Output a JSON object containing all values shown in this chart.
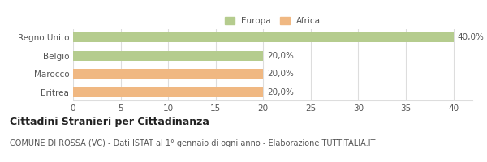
{
  "categories": [
    "Eritrea",
    "Marocco",
    "Belgio",
    "Regno Unito"
  ],
  "values": [
    20.0,
    20.0,
    20.0,
    40.0
  ],
  "colors": [
    "#f0b882",
    "#f0b882",
    "#b5cc8e",
    "#b5cc8e"
  ],
  "bar_labels": [
    "20,0%",
    "20,0%",
    "20,0%",
    "40,0%"
  ],
  "xlim": [
    0,
    42
  ],
  "xticks": [
    0,
    5,
    10,
    15,
    20,
    25,
    30,
    35,
    40
  ],
  "legend_entries": [
    {
      "label": "Europa",
      "color": "#b5cc8e"
    },
    {
      "label": "Africa",
      "color": "#f0b882"
    }
  ],
  "title_bold": "Cittadini Stranieri per Cittadinanza",
  "subtitle": "COMUNE DI ROSSA (VC) - Dati ISTAT al 1° gennaio di ogni anno - Elaborazione TUTTITALIA.IT",
  "background_color": "#ffffff",
  "grid_color": "#dddddd",
  "bar_height": 0.55,
  "label_fontsize": 7.5,
  "tick_fontsize": 7.5,
  "title_fontsize": 9,
  "subtitle_fontsize": 7.0
}
